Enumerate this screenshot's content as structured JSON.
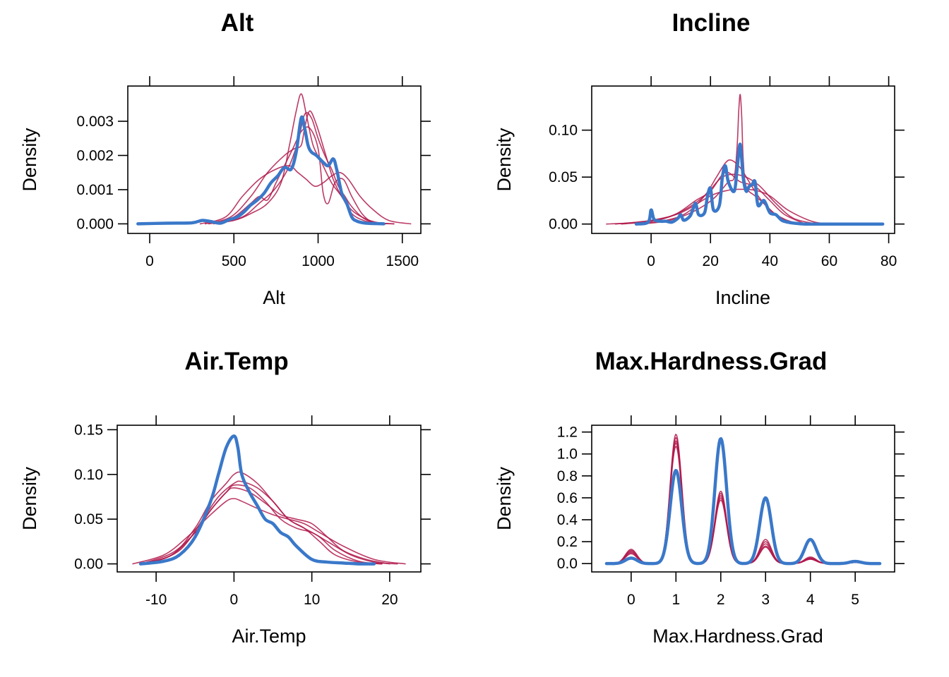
{
  "colors": {
    "observed": "#3A78C9",
    "imputed": "#B0174A",
    "frame": "#000000"
  },
  "chart_data": [
    {
      "type": "line",
      "title": "Alt",
      "xlabel": "Alt",
      "ylabel": "Density",
      "xlim": [
        -130,
        1610
      ],
      "ylim": [
        -0.00028,
        0.00403
      ],
      "xticks": [
        0,
        500,
        1000,
        1500
      ],
      "xtick_labels": [
        "0",
        "500",
        "1000",
        "1500"
      ],
      "yticks": [
        0,
        0.001,
        0.002,
        0.003
      ],
      "ytick_labels": [
        "0.000",
        "0.001",
        "0.002",
        "0.003"
      ],
      "grid": false,
      "series": [
        {
          "role": "observed",
          "x": [
            -70,
            100,
            250,
            310,
            360,
            420,
            470,
            520,
            560,
            600,
            640,
            680,
            720,
            760,
            800,
            840,
            870,
            900,
            920,
            940,
            960,
            990,
            1030,
            1060,
            1090,
            1110,
            1140,
            1170,
            1200,
            1230,
            1280,
            1330,
            1390
          ],
          "y": [
            0,
            2e-05,
            3e-05,
            0.0001,
            7e-05,
            2e-05,
            0.00012,
            0.0002,
            0.00035,
            0.00055,
            0.0007,
            0.0009,
            0.0012,
            0.0014,
            0.00165,
            0.0016,
            0.0021,
            0.0031,
            0.0028,
            0.0023,
            0.0021,
            0.002,
            0.0018,
            0.0017,
            0.0019,
            0.0016,
            0.0009,
            0.0006,
            0.0002,
            8e-05,
            2e-05,
            1e-05,
            0
          ]
        },
        {
          "role": "imputed",
          "x": [
            350,
            500,
            600,
            700,
            780,
            830,
            870,
            900,
            930,
            970,
            1020,
            1080,
            1140,
            1200,
            1270,
            1330,
            1400,
            1450
          ],
          "y": [
            0,
            0.0001,
            0.0003,
            0.0006,
            0.0012,
            0.0023,
            0.0033,
            0.0038,
            0.0032,
            0.0023,
            0.0018,
            0.0012,
            0.0008,
            0.0003,
            0.0001,
            3e-05,
            1e-05,
            0
          ]
        },
        {
          "role": "imputed",
          "x": [
            400,
            550,
            650,
            740,
            820,
            880,
            920,
            960,
            1000,
            1040,
            1080,
            1120,
            1160,
            1200,
            1260,
            1320,
            1400
          ],
          "y": [
            0,
            0.0002,
            0.0006,
            0.001,
            0.0016,
            0.0024,
            0.0032,
            0.0031,
            0.0025,
            0.002,
            0.0016,
            0.0011,
            0.0008,
            0.0005,
            0.0002,
            5e-05,
            0
          ]
        },
        {
          "role": "imputed",
          "x": [
            300,
            450,
            550,
            650,
            750,
            830,
            880,
            930,
            980,
            1030,
            1080,
            1130,
            1180,
            1250,
            1330,
            1420,
            1550
          ],
          "y": [
            0,
            0.0002,
            0.0008,
            0.0013,
            0.0016,
            0.0017,
            0.0015,
            0.0013,
            0.0011,
            0.0012,
            0.0014,
            0.0015,
            0.0013,
            0.0008,
            0.0004,
            0.0001,
            0
          ]
        },
        {
          "role": "imputed",
          "x": [
            330,
            480,
            600,
            700,
            800,
            860,
            900,
            920,
            950,
            990,
            1040,
            1090,
            1140,
            1200,
            1280,
            1360,
            1450
          ],
          "y": [
            0,
            0.0002,
            0.0008,
            0.0015,
            0.002,
            0.0022,
            0.0023,
            0.0028,
            0.0033,
            0.0029,
            0.0021,
            0.0013,
            0.0008,
            0.0004,
            0.00015,
            3e-05,
            0
          ]
        },
        {
          "role": "imputed",
          "x": [
            380,
            500,
            600,
            650,
            700,
            750,
            800,
            850,
            900,
            950,
            1000,
            1030,
            1060,
            1100,
            1150,
            1200,
            1260,
            1320,
            1380
          ],
          "y": [
            0,
            0.0002,
            0.0006,
            0.0008,
            0.0007,
            0.0012,
            0.0017,
            0.0022,
            0.0027,
            0.0028,
            0.0022,
            0.0009,
            0.0006,
            0.0012,
            0.0013,
            0.0008,
            0.0003,
            5e-05,
            0
          ]
        }
      ]
    },
    {
      "type": "line",
      "title": "Incline",
      "xlabel": "Incline",
      "ylabel": "Density",
      "xlim": [
        -20,
        82
      ],
      "ylim": [
        -0.01,
        0.147
      ],
      "xticks": [
        0,
        20,
        40,
        60,
        80
      ],
      "xtick_labels": [
        "0",
        "20",
        "40",
        "60",
        "80"
      ],
      "yticks": [
        0,
        0.05,
        0.1
      ],
      "ytick_labels": [
        "0.00",
        "0.05",
        "0.10"
      ],
      "grid": false,
      "series": [
        {
          "role": "observed",
          "x": [
            -5,
            -1,
            0,
            1,
            3,
            5,
            7,
            9,
            10,
            11,
            13,
            14,
            15,
            16,
            18,
            19,
            20,
            21,
            23,
            24,
            25,
            26,
            28,
            29,
            30,
            31,
            32,
            33,
            34,
            35,
            36,
            38,
            40,
            42,
            44,
            46,
            48,
            52,
            60,
            70,
            78
          ],
          "y": [
            0,
            0.002,
            0.015,
            0.005,
            0.003,
            0.003,
            0.002,
            0.006,
            0.01,
            0.004,
            0.008,
            0.015,
            0.022,
            0.01,
            0.012,
            0.03,
            0.038,
            0.015,
            0.02,
            0.05,
            0.062,
            0.045,
            0.035,
            0.06,
            0.085,
            0.05,
            0.035,
            0.04,
            0.042,
            0.045,
            0.02,
            0.025,
            0.012,
            0.01,
            0.004,
            0.002,
            0.001,
            0,
            0,
            0,
            0
          ]
        },
        {
          "role": "imputed",
          "x": [
            -4,
            5,
            12,
            18,
            22,
            26,
            28,
            29,
            29.5,
            30,
            30.5,
            31,
            32,
            35,
            38,
            42,
            46,
            52
          ],
          "y": [
            0,
            0.003,
            0.01,
            0.02,
            0.03,
            0.045,
            0.05,
            0.085,
            0.12,
            0.138,
            0.115,
            0.07,
            0.04,
            0.03,
            0.022,
            0.01,
            0.003,
            0
          ]
        },
        {
          "role": "imputed",
          "x": [
            -15,
            0,
            10,
            18,
            24,
            30,
            36,
            42,
            48,
            56
          ],
          "y": [
            0,
            0.003,
            0.013,
            0.03,
            0.05,
            0.052,
            0.042,
            0.022,
            0.006,
            0
          ]
        },
        {
          "role": "imputed",
          "x": [
            -10,
            0,
            8,
            15,
            20,
            25,
            30,
            35,
            40,
            45,
            52
          ],
          "y": [
            0,
            0.003,
            0.01,
            0.025,
            0.035,
            0.055,
            0.045,
            0.04,
            0.025,
            0.01,
            0
          ]
        },
        {
          "role": "imputed",
          "x": [
            -5,
            5,
            12,
            18,
            22,
            25,
            27,
            30,
            33,
            36,
            40,
            45,
            50
          ],
          "y": [
            0,
            0.004,
            0.012,
            0.03,
            0.05,
            0.065,
            0.068,
            0.06,
            0.045,
            0.03,
            0.015,
            0.005,
            0
          ]
        },
        {
          "role": "imputed",
          "x": [
            -12,
            0,
            10,
            20,
            26,
            30,
            35,
            40,
            46,
            54,
            60
          ],
          "y": [
            0,
            0.004,
            0.012,
            0.03,
            0.036,
            0.037,
            0.036,
            0.03,
            0.015,
            0.003,
            0
          ]
        }
      ]
    },
    {
      "type": "line",
      "title": "Air.Temp",
      "xlabel": "Air.Temp",
      "ylabel": "Density",
      "xlim": [
        -15,
        24
      ],
      "ylim": [
        -0.009,
        0.155
      ],
      "xticks": [
        -10,
        0,
        10,
        20
      ],
      "xtick_labels": [
        "-10",
        "0",
        "10",
        "20"
      ],
      "yticks": [
        0,
        0.05,
        0.1,
        0.15
      ],
      "ytick_labels": [
        "0.00",
        "0.05",
        "0.10",
        "0.15"
      ],
      "grid": false,
      "series": [
        {
          "role": "observed",
          "x": [
            -12,
            -9,
            -7,
            -5,
            -3,
            -2,
            -1,
            0,
            0.5,
            1,
            2,
            3,
            4,
            5,
            6,
            7,
            8,
            10,
            12,
            14,
            16,
            18
          ],
          "y": [
            0,
            0.003,
            0.01,
            0.03,
            0.07,
            0.1,
            0.13,
            0.143,
            0.13,
            0.1,
            0.08,
            0.065,
            0.05,
            0.045,
            0.035,
            0.03,
            0.02,
            0.005,
            0.002,
            0.001,
            0,
            0
          ]
        },
        {
          "role": "imputed",
          "x": [
            -12,
            -8,
            -5,
            -3,
            -1,
            0,
            1,
            3,
            5,
            7,
            9,
            11,
            13,
            16,
            19
          ],
          "y": [
            0,
            0.01,
            0.04,
            0.07,
            0.09,
            0.1,
            0.102,
            0.09,
            0.07,
            0.05,
            0.04,
            0.025,
            0.01,
            0.002,
            0
          ]
        },
        {
          "role": "imputed",
          "x": [
            -12,
            -8,
            -5,
            -3,
            -1,
            0,
            2,
            4,
            6,
            8,
            10,
            12,
            14,
            17,
            20
          ],
          "y": [
            0,
            0.01,
            0.035,
            0.06,
            0.08,
            0.085,
            0.08,
            0.068,
            0.055,
            0.05,
            0.045,
            0.03,
            0.015,
            0.005,
            0
          ]
        },
        {
          "role": "imputed",
          "x": [
            -13,
            -9,
            -6,
            -3,
            -1,
            0,
            1,
            3,
            5,
            7,
            9,
            11,
            14,
            18,
            22
          ],
          "y": [
            0,
            0.01,
            0.03,
            0.055,
            0.07,
            0.073,
            0.07,
            0.062,
            0.055,
            0.05,
            0.045,
            0.035,
            0.02,
            0.005,
            0
          ]
        },
        {
          "role": "imputed",
          "x": [
            -11,
            -7,
            -4,
            -2,
            0,
            1,
            3,
            5,
            7,
            9,
            11,
            13,
            16,
            19
          ],
          "y": [
            0,
            0.015,
            0.05,
            0.075,
            0.09,
            0.092,
            0.085,
            0.07,
            0.05,
            0.04,
            0.03,
            0.015,
            0.003,
            0
          ]
        },
        {
          "role": "imputed",
          "x": [
            -12,
            -8,
            -5,
            -3,
            -1,
            0,
            2,
            4,
            6,
            8,
            10,
            12,
            15,
            18,
            21
          ],
          "y": [
            0,
            0.012,
            0.035,
            0.06,
            0.08,
            0.088,
            0.085,
            0.07,
            0.05,
            0.04,
            0.035,
            0.025,
            0.01,
            0.002,
            0
          ]
        }
      ]
    },
    {
      "type": "line",
      "title": "Max.Hardness.Grad",
      "xlabel": "Max.Hardness.Grad",
      "ylabel": "Density",
      "xlim": [
        -0.88,
        5.88
      ],
      "ylim": [
        -0.076,
        1.262
      ],
      "xticks": [
        0,
        1,
        2,
        3,
        4,
        5
      ],
      "xtick_labels": [
        "0",
        "1",
        "2",
        "3",
        "4",
        "5"
      ],
      "yticks": [
        0,
        0.2,
        0.4,
        0.6,
        0.8,
        1.0,
        1.2
      ],
      "ytick_labels": [
        "0.0",
        "0.2",
        "0.4",
        "0.6",
        "0.8",
        "1.0",
        "1.2"
      ],
      "grid": false,
      "bandwidth": 0.13,
      "series": [
        {
          "role": "observed",
          "peaks": [
            [
              0,
              0.05
            ],
            [
              1,
              0.85
            ],
            [
              2,
              1.14
            ],
            [
              3,
              0.6
            ],
            [
              4,
              0.22
            ],
            [
              5,
              0.02
            ]
          ]
        },
        {
          "role": "imputed",
          "peaks": [
            [
              0,
              0.13
            ],
            [
              1,
              1.18
            ],
            [
              2,
              0.66
            ],
            [
              3,
              0.22
            ],
            [
              4,
              0.05
            ],
            [
              5,
              0.01
            ]
          ]
        },
        {
          "role": "imputed",
          "peaks": [
            [
              0,
              0.11
            ],
            [
              1,
              1.15
            ],
            [
              2,
              0.62
            ],
            [
              3,
              0.18
            ],
            [
              4,
              0.04
            ],
            [
              5,
              0.01
            ]
          ]
        },
        {
          "role": "imputed",
          "peaks": [
            [
              0,
              0.09
            ],
            [
              1,
              1.1
            ],
            [
              2,
              0.6
            ],
            [
              3,
              0.15
            ],
            [
              4,
              0.06
            ],
            [
              5,
              0.01
            ]
          ]
        },
        {
          "role": "imputed",
          "peaks": [
            [
              0,
              0.12
            ],
            [
              1,
              1.07
            ],
            [
              2,
              0.58
            ],
            [
              3,
              0.16
            ],
            [
              4,
              0.04
            ],
            [
              5,
              0.01
            ]
          ]
        },
        {
          "role": "imputed",
          "peaks": [
            [
              0,
              0.1
            ],
            [
              1,
              1.12
            ],
            [
              2,
              0.64
            ],
            [
              3,
              0.2
            ],
            [
              4,
              0.05
            ],
            [
              5,
              0.01
            ]
          ]
        }
      ]
    }
  ]
}
